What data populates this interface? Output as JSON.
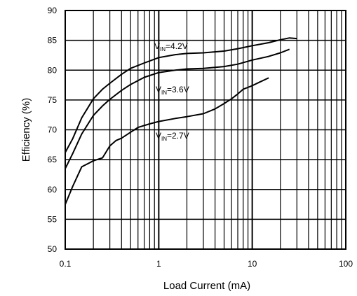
{
  "chart_data": {
    "type": "line",
    "title": "",
    "xlabel": "Load Current (mA)",
    "ylabel": "Efficiency (%)",
    "xscale": "log",
    "xlim": [
      0.1,
      100
    ],
    "ylim": [
      50,
      90
    ],
    "grid": true,
    "x_tick_labels": [
      "0.1",
      "1",
      "10",
      "100"
    ],
    "y_tick_labels": [
      "50",
      "55",
      "60",
      "65",
      "70",
      "75",
      "80",
      "85",
      "90"
    ],
    "series": [
      {
        "name": "V_IN=4.2V",
        "annotation": {
          "main": "V",
          "sub": "IN",
          "rest": "=4.2V"
        },
        "x": [
          0.1,
          0.12,
          0.15,
          0.2,
          0.25,
          0.3,
          0.4,
          0.5,
          0.7,
          1,
          1.5,
          2,
          3,
          5,
          7,
          10,
          15,
          20,
          25,
          30
        ],
        "y": [
          66.2,
          68.5,
          72,
          75.2,
          76.8,
          77.8,
          79.3,
          80.3,
          81.2,
          82.1,
          82.6,
          82.8,
          82.9,
          83.2,
          83.6,
          84.1,
          84.6,
          85.1,
          85.4,
          85.3
        ]
      },
      {
        "name": "V_IN=3.6V",
        "annotation": {
          "main": "V",
          "sub": "IN",
          "rest": "=3.6V"
        },
        "x": [
          0.1,
          0.12,
          0.15,
          0.2,
          0.25,
          0.3,
          0.4,
          0.5,
          0.7,
          1,
          1.5,
          2,
          3,
          5,
          7,
          10,
          15,
          20,
          25
        ],
        "y": [
          63.5,
          66,
          69.3,
          72.4,
          74,
          75.1,
          76.6,
          77.6,
          78.8,
          79.6,
          80,
          80.2,
          80.3,
          80.6,
          81,
          81.7,
          82.3,
          82.9,
          83.5
        ]
      },
      {
        "name": "V_IN=2.7V",
        "annotation": {
          "main": "V",
          "sub": "IN",
          "rest": "=2.7V"
        },
        "x": [
          0.1,
          0.12,
          0.15,
          0.2,
          0.25,
          0.3,
          0.35,
          0.4,
          0.5,
          0.6,
          0.8,
          1,
          1.5,
          2,
          3,
          4,
          5,
          6,
          7,
          8,
          10,
          12,
          15
        ],
        "y": [
          57.5,
          60.5,
          63.8,
          64.8,
          65.3,
          67.3,
          68.2,
          68.6,
          69.6,
          70.4,
          71,
          71.4,
          71.9,
          72.2,
          72.7,
          73.5,
          74.4,
          75.2,
          76,
          76.8,
          77.4,
          78,
          78.7
        ]
      }
    ]
  },
  "colors": {
    "line": "#000000",
    "grid": "#000000",
    "background": "#ffffff"
  }
}
